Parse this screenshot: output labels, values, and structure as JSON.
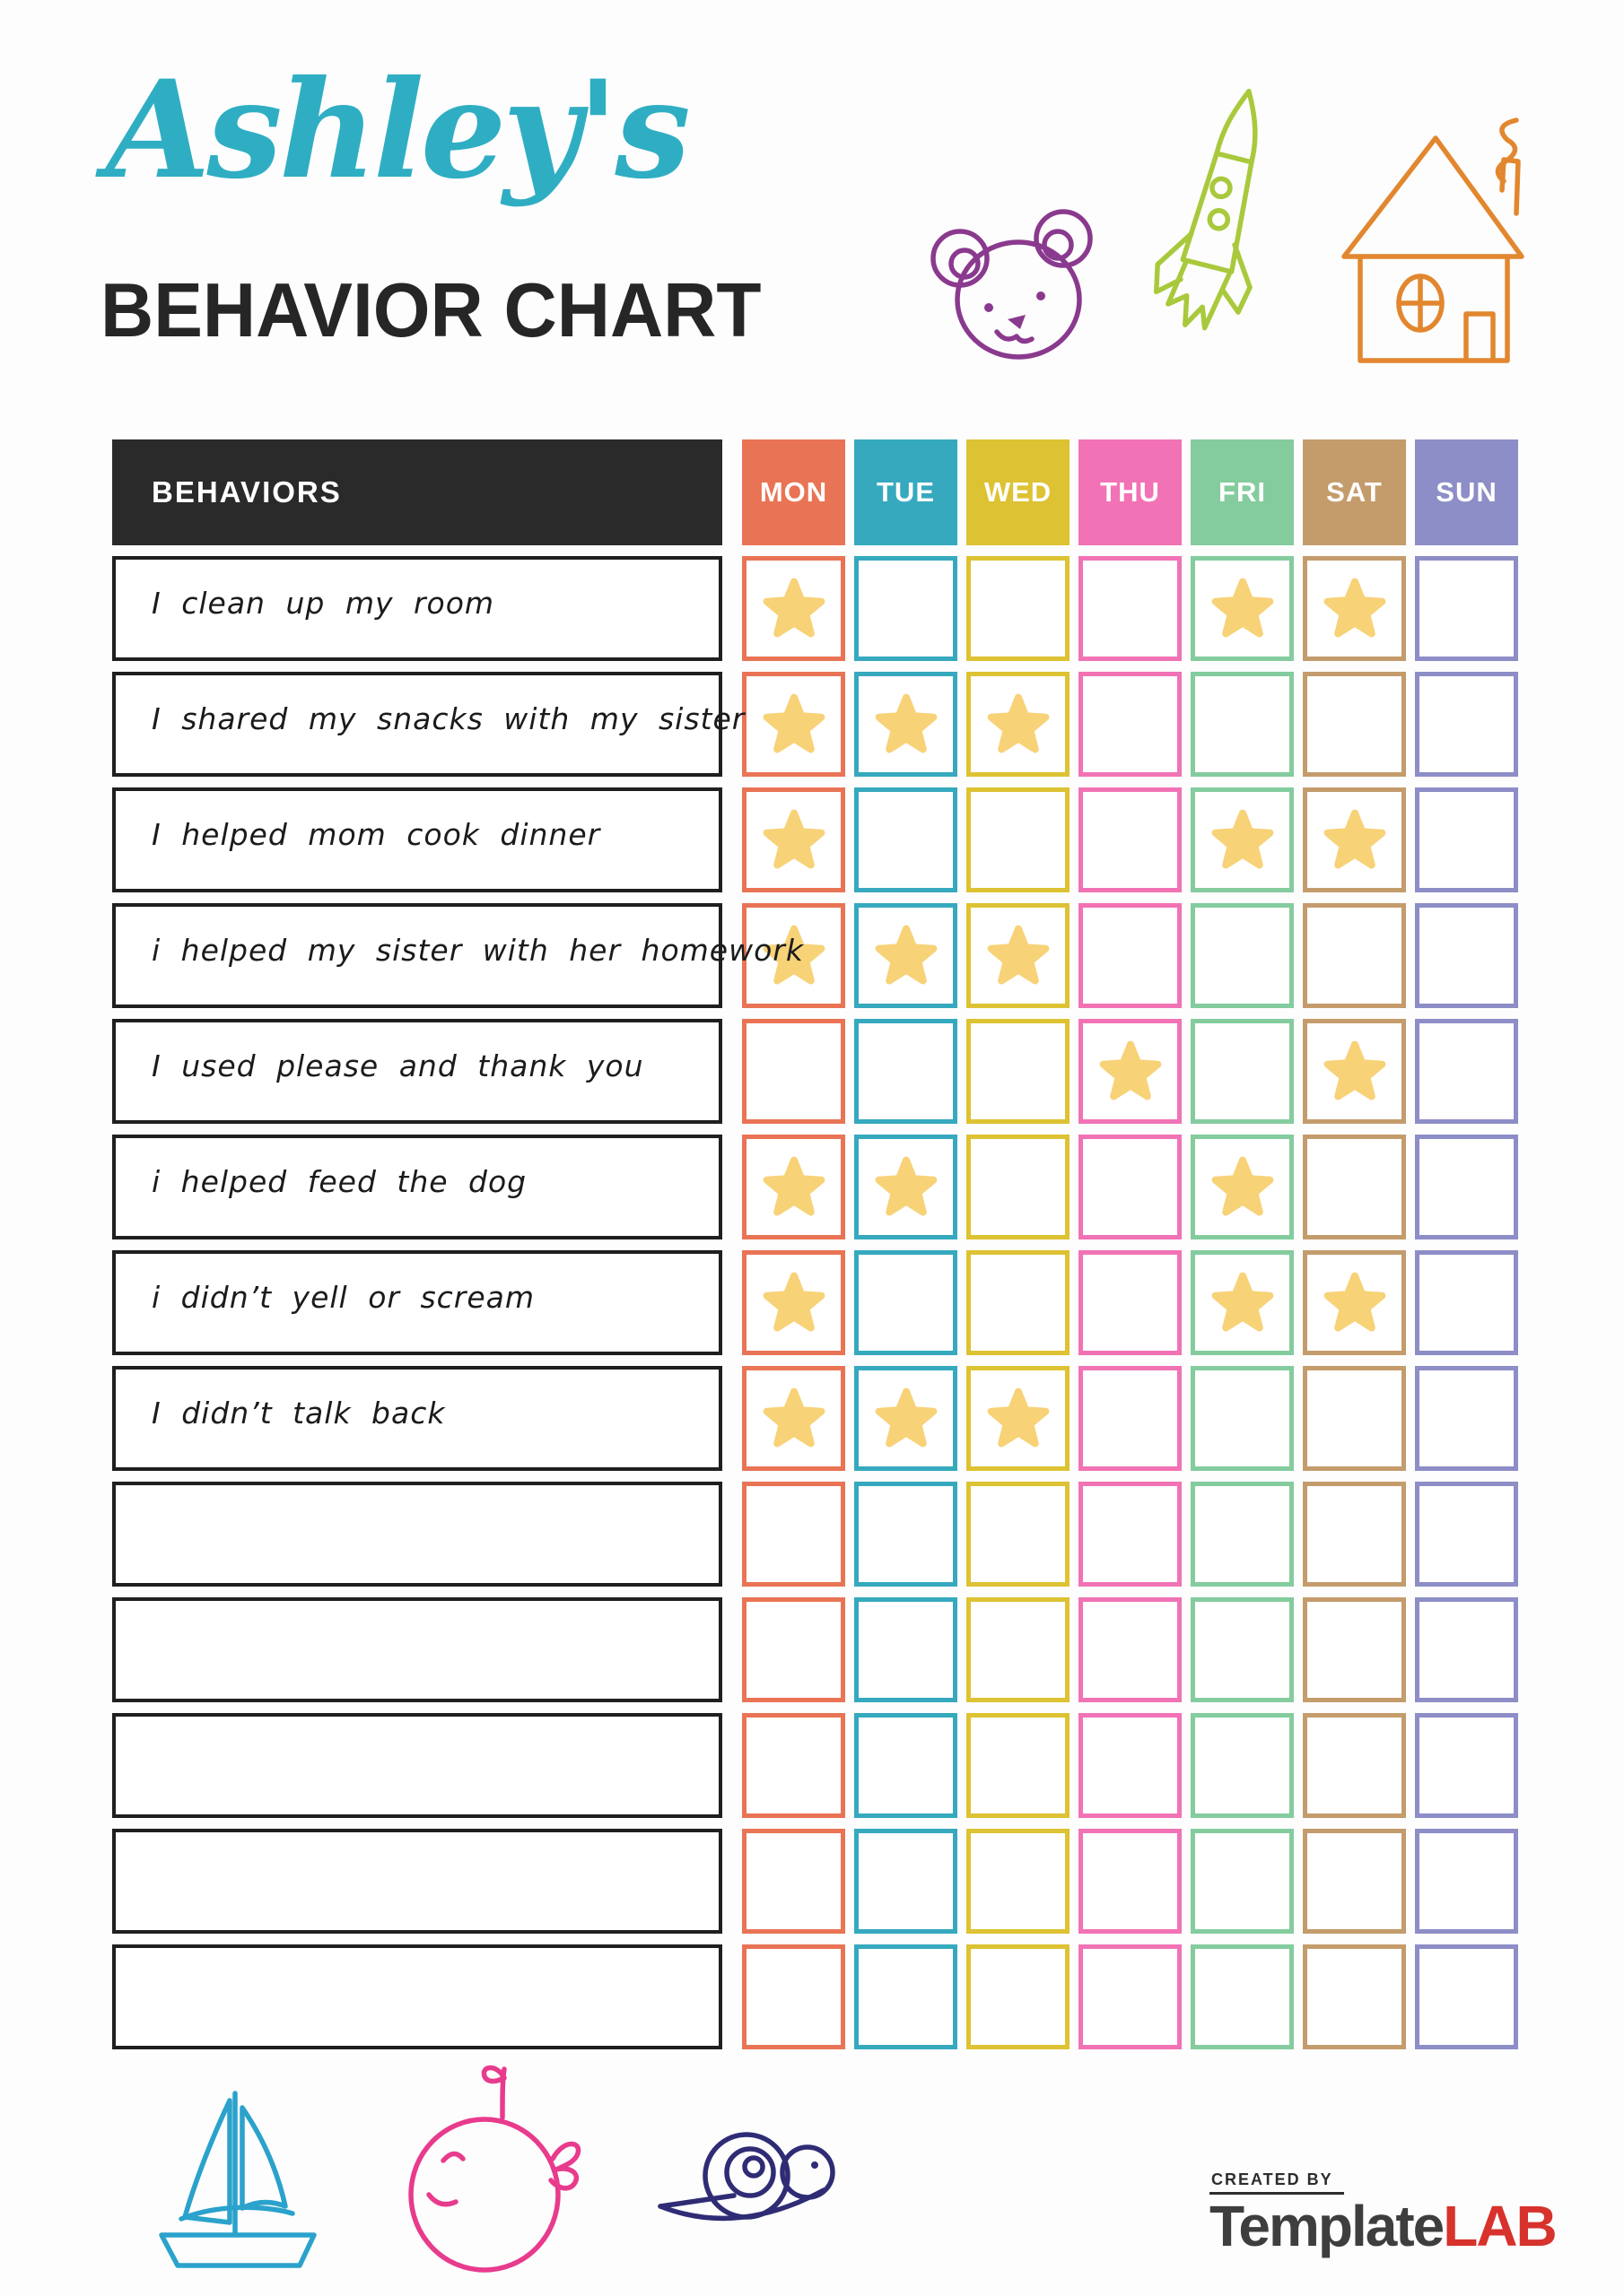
{
  "header": {
    "child_name": "Ashley's",
    "title": "BEHAVIOR CHART",
    "name_color": "#2FAEC3",
    "title_color": "#262626",
    "doodles": [
      "bear-doodle",
      "rocket-doodle",
      "house-doodle"
    ],
    "doodle_colors": {
      "bear": "#8A3A8E",
      "rocket": "#A9C93C",
      "house": "#E2872F"
    }
  },
  "table": {
    "behaviors_header": "BEHAVIORS",
    "header_bg": "#2A2A2A",
    "header_text_color": "#FFFFFF",
    "row_border_color": "#1F1F1F",
    "star_color": "#F7D277",
    "star_char": "★",
    "days": [
      {
        "label": "MON",
        "color": "#E97455"
      },
      {
        "label": "TUE",
        "color": "#36A9BE"
      },
      {
        "label": "WED",
        "color": "#DDC233"
      },
      {
        "label": "THU",
        "color": "#F173B5"
      },
      {
        "label": "FRI",
        "color": "#84CC9E"
      },
      {
        "label": "SAT",
        "color": "#C49C6C"
      },
      {
        "label": "SUN",
        "color": "#8D8DC7"
      }
    ],
    "rows": [
      {
        "behavior": "I clean up my room",
        "stars": [
          1,
          0,
          0,
          0,
          1,
          1,
          0
        ]
      },
      {
        "behavior": "I shared my snacks with my sister",
        "stars": [
          1,
          1,
          1,
          0,
          0,
          0,
          0
        ]
      },
      {
        "behavior": "I helped mom cook dinner",
        "stars": [
          1,
          0,
          0,
          0,
          1,
          1,
          0
        ]
      },
      {
        "behavior": "i helped my sister with her homework",
        "stars": [
          1,
          1,
          1,
          0,
          0,
          0,
          0
        ]
      },
      {
        "behavior": "I used please and thank you",
        "stars": [
          0,
          0,
          0,
          1,
          0,
          1,
          0
        ]
      },
      {
        "behavior": "i helped feed the dog",
        "stars": [
          1,
          1,
          0,
          0,
          1,
          0,
          0
        ]
      },
      {
        "behavior": "i didn’t yell or scream",
        "stars": [
          1,
          0,
          0,
          0,
          1,
          1,
          0
        ]
      },
      {
        "behavior": "I didn’t talk back",
        "stars": [
          1,
          1,
          1,
          0,
          0,
          0,
          0
        ]
      },
      {
        "behavior": "",
        "stars": [
          0,
          0,
          0,
          0,
          0,
          0,
          0
        ]
      },
      {
        "behavior": "",
        "stars": [
          0,
          0,
          0,
          0,
          0,
          0,
          0
        ]
      },
      {
        "behavior": "",
        "stars": [
          0,
          0,
          0,
          0,
          0,
          0,
          0
        ]
      },
      {
        "behavior": "",
        "stars": [
          0,
          0,
          0,
          0,
          0,
          0,
          0
        ]
      },
      {
        "behavior": "",
        "stars": [
          0,
          0,
          0,
          0,
          0,
          0,
          0
        ]
      }
    ]
  },
  "footer": {
    "created_by": "CREATED BY",
    "brand_template": "Template",
    "brand_lab": "LAB",
    "brand_template_color": "#3E3E3E",
    "brand_lab_color": "#D7322C",
    "doodles": [
      "sailboat-doodle",
      "whale-doodle",
      "snail-doodle"
    ],
    "doodle_colors": {
      "sailboat": "#2AA2CC",
      "whale": "#E83B8D",
      "snail": "#2F2C75"
    }
  }
}
